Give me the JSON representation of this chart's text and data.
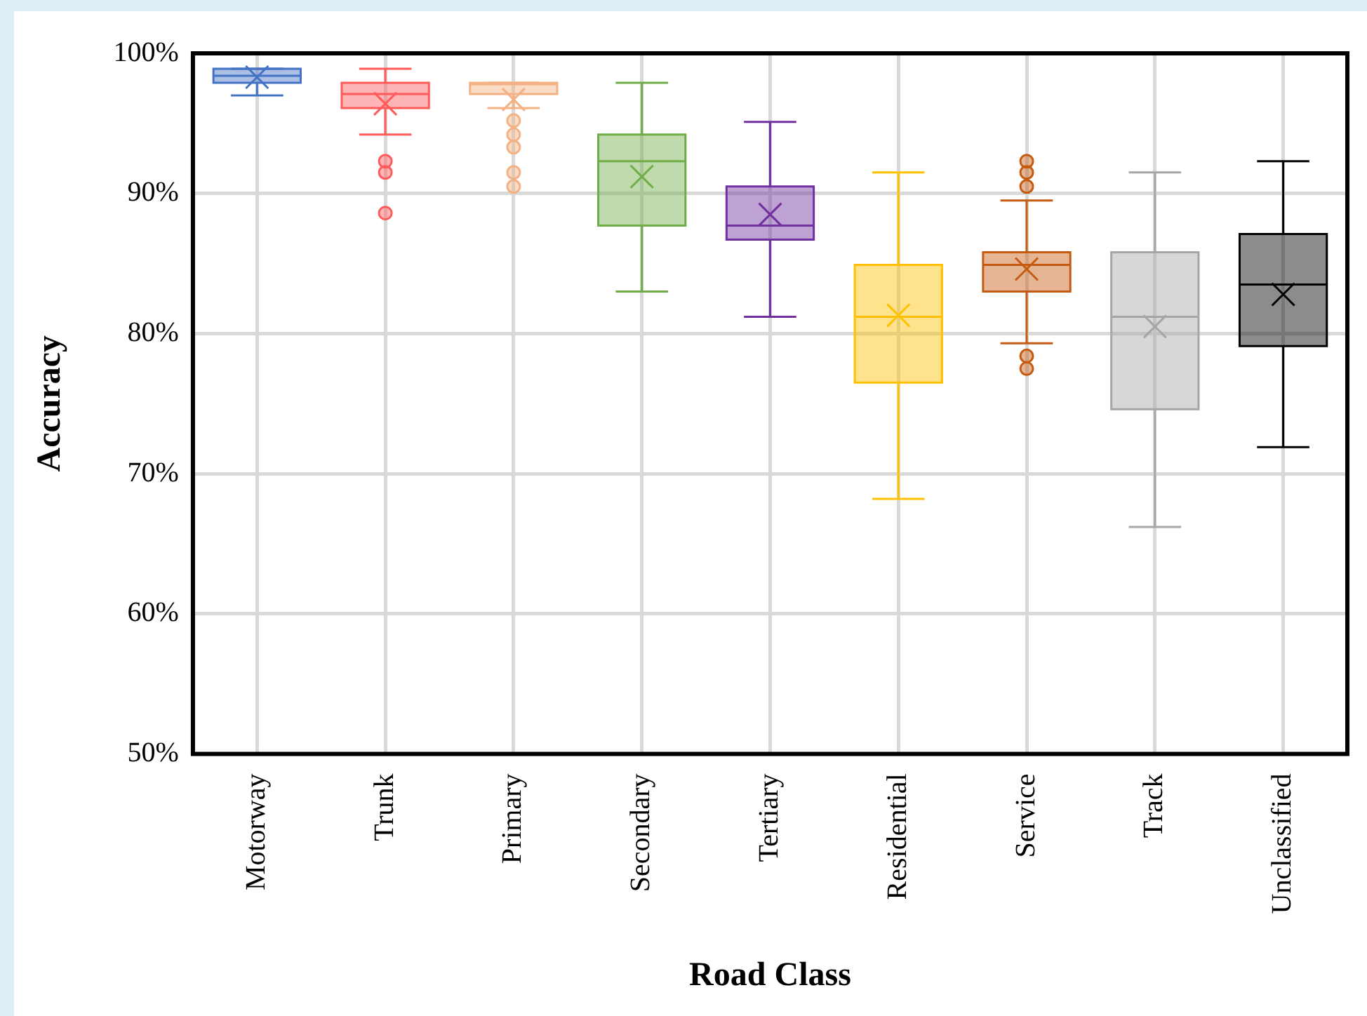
{
  "chart_data": {
    "type": "box",
    "xlabel": "Road Class",
    "ylabel": "Accuracy",
    "categories": [
      "Motorway",
      "Trunk",
      "Primary",
      "Secondary",
      "Tertiary",
      "Residential",
      "Service",
      "Track",
      "Unclassified"
    ],
    "colors": [
      "#4472c4",
      "#ff5b5b",
      "#f4b183",
      "#70ad47",
      "#7030a0",
      "#ffc000",
      "#c55a11",
      "#a6a6a6",
      "#000000"
    ],
    "boxes": [
      {
        "low": 97.0,
        "q1": 97.9,
        "median": 98.4,
        "q3": 98.9,
        "high": 98.9,
        "mean": 98.3
      },
      {
        "low": 94.2,
        "q1": 96.1,
        "median": 97.1,
        "q3": 97.9,
        "high": 98.9,
        "mean": 96.4,
        "outliers": [
          92.3,
          91.5,
          88.6
        ]
      },
      {
        "low": 96.1,
        "q1": 97.1,
        "median": 97.8,
        "q3": 97.9,
        "high": 97.9,
        "mean": 96.7,
        "outliers": [
          95.2,
          94.2,
          93.3,
          91.5,
          90.5
        ]
      },
      {
        "low": 83.0,
        "q1": 87.7,
        "median": 92.3,
        "q3": 94.2,
        "high": 97.9,
        "mean": 91.2
      },
      {
        "low": 81.2,
        "q1": 86.7,
        "median": 87.7,
        "q3": 90.5,
        "high": 95.1,
        "mean": 88.5
      },
      {
        "low": 68.2,
        "q1": 76.5,
        "median": 81.2,
        "q3": 84.9,
        "high": 91.5,
        "mean": 81.3
      },
      {
        "low": 79.3,
        "q1": 83.0,
        "median": 84.9,
        "q3": 85.8,
        "high": 89.5,
        "mean": 84.6,
        "outliers": [
          92.3,
          91.5,
          90.5,
          78.4,
          77.5
        ]
      },
      {
        "low": 66.2,
        "q1": 74.6,
        "median": 81.2,
        "q3": 85.8,
        "high": 91.5,
        "mean": 80.5
      },
      {
        "low": 71.9,
        "q1": 79.1,
        "median": 83.5,
        "q3": 87.1,
        "high": 92.3,
        "mean": 82.8
      }
    ],
    "ylim": [
      50,
      100
    ],
    "yticks": [
      {
        "value": 50,
        "label": "50%"
      },
      {
        "value": 60,
        "label": "60%"
      },
      {
        "value": 70,
        "label": "70%"
      },
      {
        "value": 80,
        "label": "80%"
      },
      {
        "value": 90,
        "label": "90%"
      },
      {
        "value": 100,
        "label": "100%"
      }
    ],
    "grid": true,
    "legend": false
  }
}
